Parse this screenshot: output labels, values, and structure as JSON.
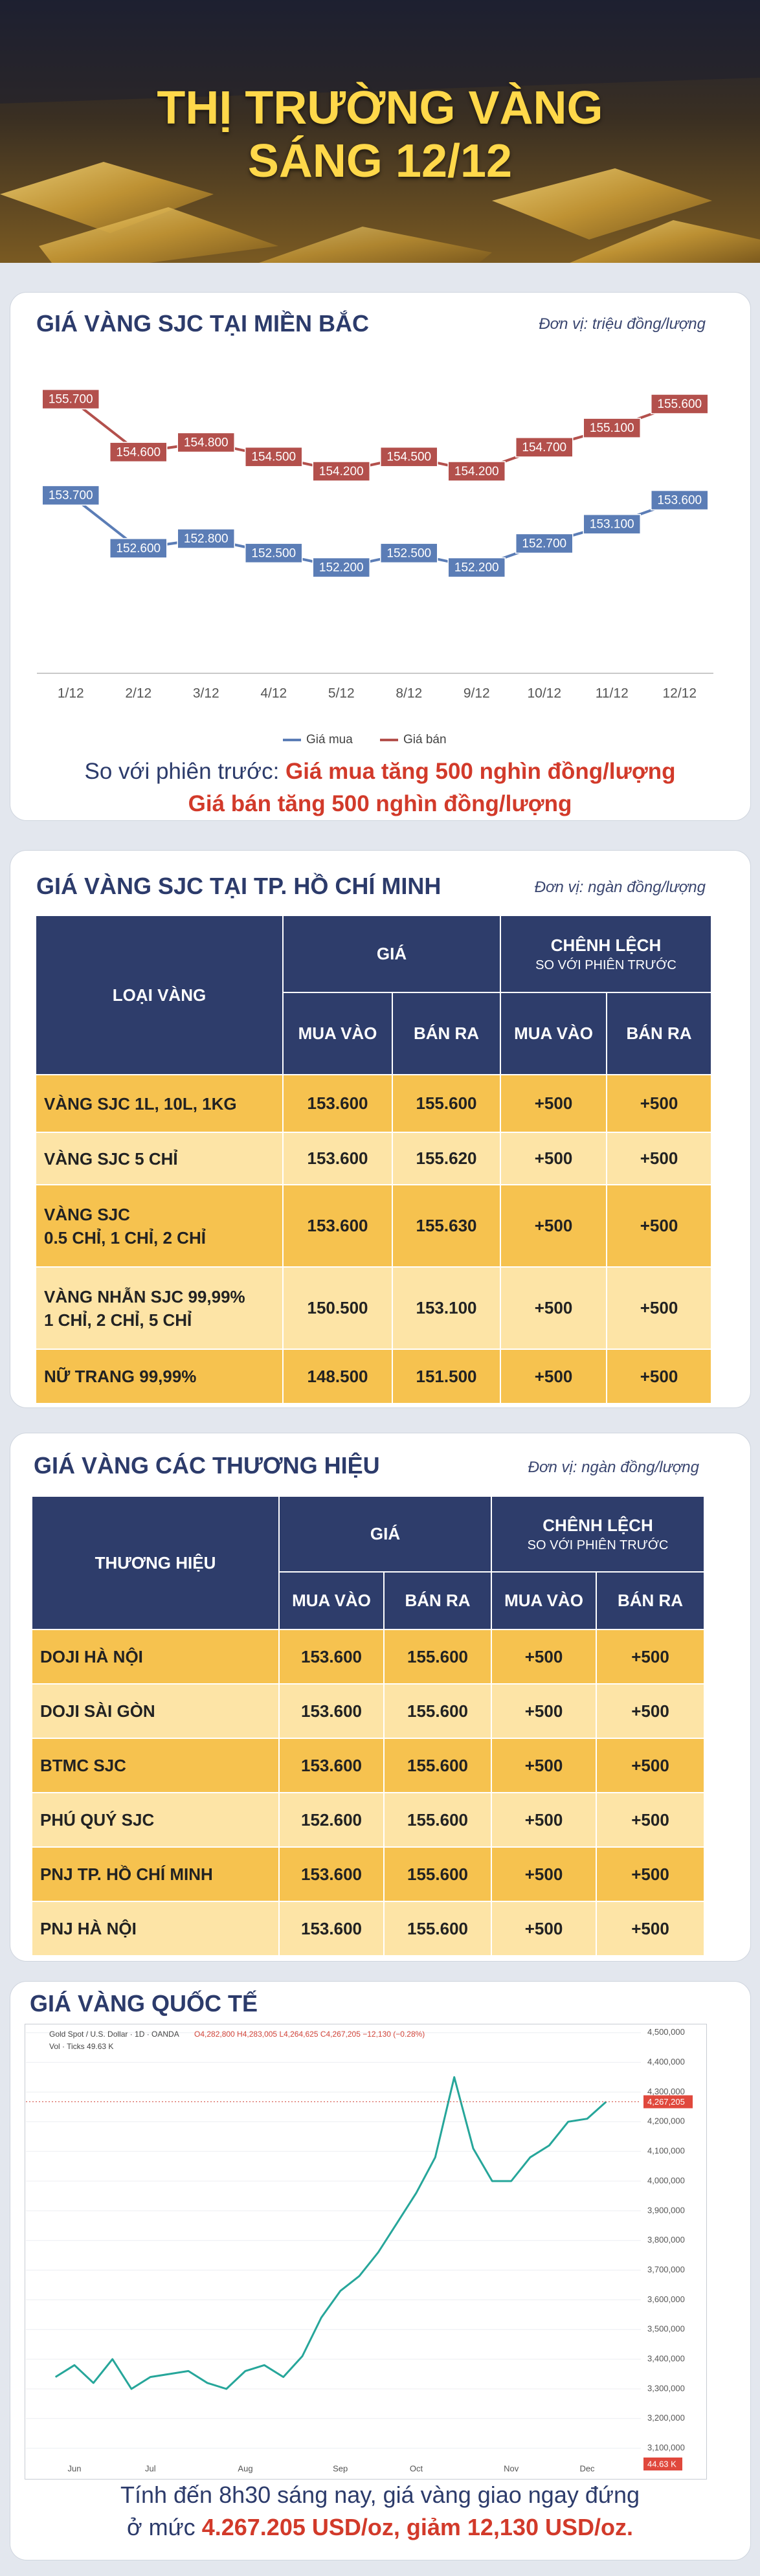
{
  "header": {
    "title": "THỊ TRƯỜNG VÀNG",
    "subtitle": "SÁNG 12/12"
  },
  "chart_data": [
    {
      "type": "line",
      "title": "GIÁ VÀNG SJC TẠI MIỀN BẮC",
      "unit": "Đơn vị: triệu đồng/lượng",
      "categories": [
        "1/12",
        "2/12",
        "3/12",
        "4/12",
        "5/12",
        "8/12",
        "9/12",
        "10/12",
        "11/12",
        "12/12"
      ],
      "series": [
        {
          "name": "Giá mua",
          "color": "#5b7db6",
          "values": [
            153.7,
            152.6,
            152.8,
            152.5,
            152.2,
            152.5,
            152.2,
            152.7,
            153.1,
            153.6
          ],
          "value_labels": [
            "153.700",
            "152.600",
            "152.800",
            "152.500",
            "152.200",
            "152.500",
            "152.200",
            "152.700",
            "153.100",
            "153.600"
          ]
        },
        {
          "name": "Giá bán",
          "color": "#b3504c",
          "values": [
            155.7,
            154.6,
            154.8,
            154.5,
            154.2,
            154.5,
            154.2,
            154.7,
            155.1,
            155.6
          ],
          "value_labels": [
            "155.700",
            "154.600",
            "154.800",
            "154.500",
            "154.200",
            "154.500",
            "154.200",
            "154.700",
            "155.100",
            "155.600"
          ]
        }
      ],
      "ylim": [
        150,
        157
      ],
      "legend": "bottom",
      "comparison": {
        "label": "So với phiên trước:",
        "buy": "Giá mua tăng 500 nghìn đồng/lượng",
        "sell": "Giá bán tăng 500 nghìn đồng/lượng"
      }
    },
    {
      "type": "line",
      "title": "GIÁ VÀNG QUỐC TẾ",
      "symbol": "Gold Spot / U.S. Dollar · 1D · OANDA",
      "ohlc": "O4,282,800 H4,283,005 L4,264,625 C4,267,205 −12,130 (−0.28%)",
      "volume_info": "Vol · Ticks 49.63 K",
      "categories": [
        null,
        "Jun",
        null,
        null,
        null,
        "Jul",
        null,
        null,
        null,
        null,
        "Aug",
        null,
        null,
        null,
        null,
        "Sep",
        null,
        null,
        null,
        "Oct",
        null,
        null,
        null,
        null,
        "Nov",
        null,
        null,
        null,
        "Dec",
        null
      ],
      "values": [
        3340000,
        3380000,
        3320000,
        3400000,
        3300000,
        3340000,
        3350000,
        3360000,
        3320000,
        3300000,
        3360000,
        3380000,
        3340000,
        3410000,
        3540000,
        3630000,
        3680000,
        3760000,
        3860000,
        3960000,
        4080000,
        4350000,
        4110000,
        4000000,
        4000000,
        4080000,
        4120000,
        4200000,
        4210000,
        4267205
      ],
      "color": "#26a69a",
      "grid": true,
      "last_label": "4,267,205",
      "volume_label": "44.63 K",
      "ylim": [
        3060000,
        4530000
      ],
      "yticks": [
        {
          "value": 4500000,
          "label": "4,500,000"
        },
        {
          "value": 4400000,
          "label": "4,400,000"
        },
        {
          "value": 4300000,
          "label": "4,300,000"
        },
        {
          "value": 4200000,
          "label": "4,200,000"
        },
        {
          "value": 4100000,
          "label": "4,100,000"
        },
        {
          "value": 4000000,
          "label": "4,000,000"
        },
        {
          "value": 3900000,
          "label": "3,900,000"
        },
        {
          "value": 3800000,
          "label": "3,800,000"
        },
        {
          "value": 3700000,
          "label": "3,700,000"
        },
        {
          "value": 3600000,
          "label": "3,600,000"
        },
        {
          "value": 3500000,
          "label": "3,500,000"
        },
        {
          "value": 3400000,
          "label": "3,400,000"
        },
        {
          "value": 3300000,
          "label": "3,300,000"
        },
        {
          "value": 3200000,
          "label": "3,200,000"
        },
        {
          "value": 3100000,
          "label": "3,100,000"
        }
      ],
      "caption": {
        "line1": "Tính đến 8h30 sáng nay, giá vàng giao ngay đứng",
        "prefix": "ở mức",
        "highlight": "4.267.205 USD/oz, giảm 12,130 USD/oz."
      }
    }
  ],
  "tables": [
    {
      "title": "GIÁ VÀNG SJC TẠI TP. HỒ CHÍ MINH",
      "unit": "Đơn vị: ngàn đồng/lượng",
      "head": {
        "name": "LOẠI VÀNG",
        "price": "GIÁ",
        "change": "CHÊNH LỆCH",
        "change_sub": "SO VỚI PHIÊN TRƯỚC",
        "buy": "MUA VÀO",
        "sell": "BÁN RA"
      },
      "rows": [
        {
          "name": [
            "VÀNG SJC 1L, 10L, 1KG"
          ],
          "values": [
            "153.600",
            "155.600",
            "+500",
            "+500"
          ]
        },
        {
          "name": [
            "VÀNG SJC 5 CHỈ"
          ],
          "values": [
            "153.600",
            "155.620",
            "+500",
            "+500"
          ]
        },
        {
          "name": [
            "VÀNG SJC",
            "0.5 CHỈ, 1 CHỈ, 2 CHỈ"
          ],
          "values": [
            "153.600",
            "155.630",
            "+500",
            "+500"
          ]
        },
        {
          "name": [
            "VÀNG NHẪN SJC 99,99%",
            "1 CHỈ, 2 CHỈ, 5 CHỈ"
          ],
          "values": [
            "150.500",
            "153.100",
            "+500",
            "+500"
          ]
        },
        {
          "name": [
            "NỮ TRANG 99,99%"
          ],
          "values": [
            "148.500",
            "151.500",
            "+500",
            "+500"
          ]
        }
      ]
    },
    {
      "title": "GIÁ VÀNG CÁC THƯƠNG HIỆU",
      "unit": "Đơn vị: ngàn đồng/lượng",
      "head": {
        "name": "THƯƠNG HIỆU",
        "price": "GIÁ",
        "change": "CHÊNH LỆCH",
        "change_sub": "SO VỚI PHIÊN TRƯỚC",
        "buy": "MUA VÀO",
        "sell": "BÁN RA"
      },
      "rows": [
        {
          "name": [
            "DOJI HÀ NỘI"
          ],
          "values": [
            "153.600",
            "155.600",
            "+500",
            "+500"
          ]
        },
        {
          "name": [
            "DOJI SÀI GÒN"
          ],
          "values": [
            "153.600",
            "155.600",
            "+500",
            "+500"
          ]
        },
        {
          "name": [
            "BTMC SJC"
          ],
          "values": [
            "153.600",
            "155.600",
            "+500",
            "+500"
          ]
        },
        {
          "name": [
            "PHÚ QUÝ SJC"
          ],
          "values": [
            "152.600",
            "155.600",
            "+500",
            "+500"
          ]
        },
        {
          "name": [
            "PNJ TP. HỒ CHÍ MINH"
          ],
          "values": [
            "153.600",
            "155.600",
            "+500",
            "+500"
          ]
        },
        {
          "name": [
            "PNJ HÀ NỘI"
          ],
          "values": [
            "153.600",
            "155.600",
            "+500",
            "+500"
          ]
        }
      ]
    }
  ]
}
